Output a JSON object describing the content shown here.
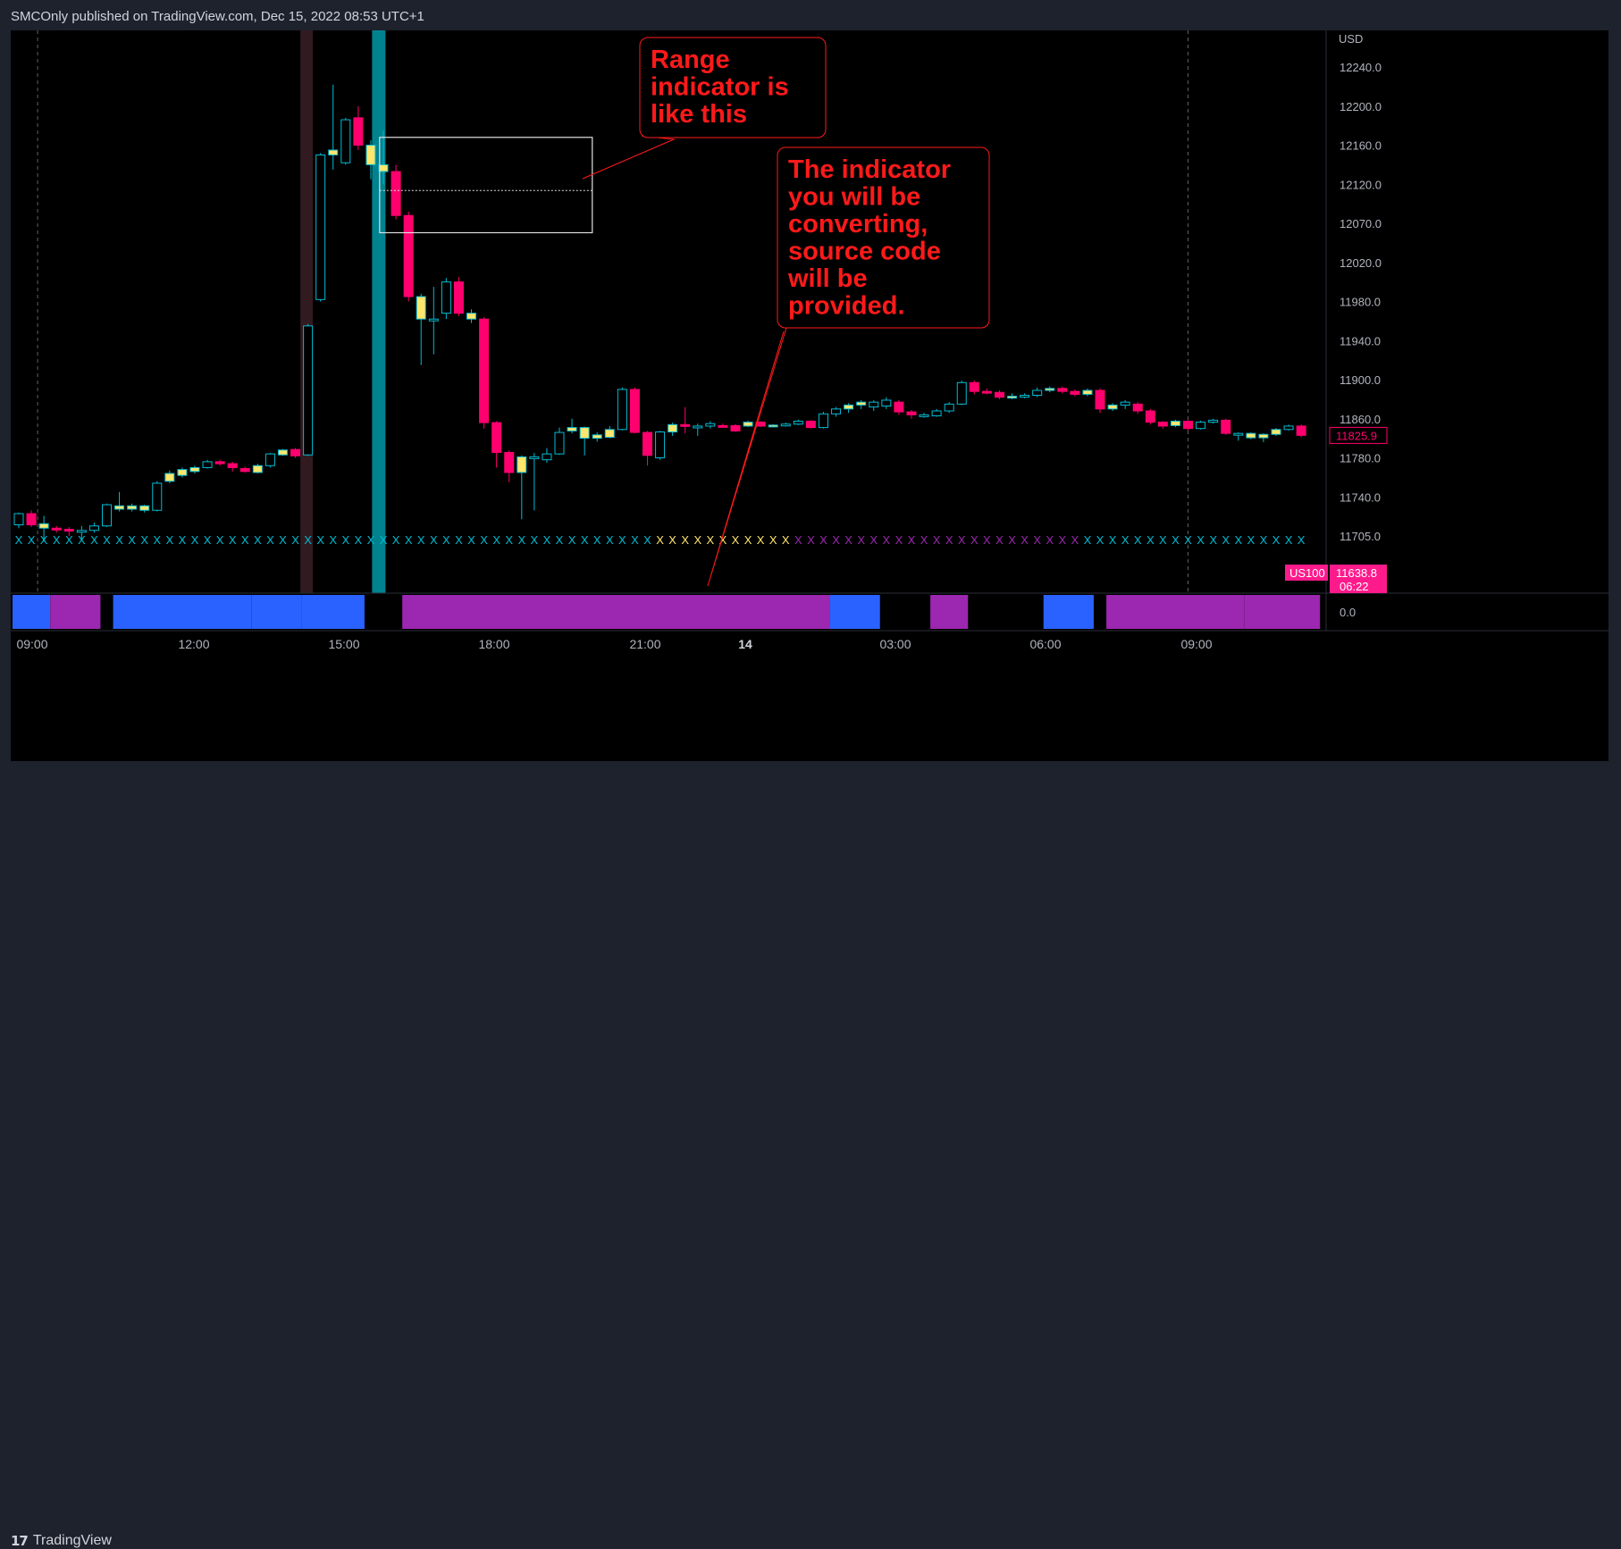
{
  "header": {
    "published_text": "SMCOnly published on TradingView.com, Dec 15, 2022 08:53 UTC+1"
  },
  "footer": {
    "logo_text": "TradingView",
    "logo_icon": "tradingview-logo-icon"
  },
  "colors": {
    "bull": "#00bcd4",
    "bull_alt": "#ffe66d",
    "bear": "#ff006e",
    "annotation": "#ff1a1a",
    "highlight": "#00838f",
    "session": "#311b20",
    "regime_blue": "#2962ff",
    "regime_purple": "#9c27b0",
    "tag_bg": "#ff1a8c"
  },
  "annotations": [
    {
      "lines": [
        "Range",
        "indicator is",
        "like this"
      ]
    },
    {
      "lines": [
        "The indicator",
        "you will be",
        "converting,",
        "source code",
        "will be",
        "provided."
      ]
    }
  ],
  "chart_data": {
    "type": "candlestick",
    "currency_label": "USD",
    "symbol": "US100",
    "last_price": "11825.9",
    "tag_price": "11638.8",
    "countdown": "06:22",
    "indicator_value": "0.0",
    "y_ticks": [
      "12240.0",
      "12200.0",
      "12160.0",
      "12120.0",
      "12070.0",
      "12020.0",
      "11980.0",
      "11940.0",
      "11900.0",
      "11860.0",
      "11780.0",
      "11740.0",
      "11705.0"
    ],
    "x_ticks": [
      {
        "label": "09:00",
        "bold": false
      },
      {
        "label": "12:00",
        "bold": false
      },
      {
        "label": "15:00",
        "bold": false
      },
      {
        "label": "18:00",
        "bold": false
      },
      {
        "label": "21:00",
        "bold": false
      },
      {
        "label": "14",
        "bold": true
      },
      {
        "label": "03:00",
        "bold": false
      },
      {
        "label": "06:00",
        "bold": false
      },
      {
        "label": "09:00",
        "bold": false
      }
    ],
    "candles": [
      [
        11715,
        11725,
        11712,
        11726,
        "b"
      ],
      [
        11725,
        11715,
        11713,
        11728,
        "r"
      ],
      [
        11716,
        11712,
        11700,
        11723,
        "y"
      ],
      [
        11712,
        11711,
        11708,
        11714,
        "r"
      ],
      [
        11711,
        11710,
        11705,
        11713,
        "r"
      ],
      [
        11710,
        11710,
        11702,
        11714,
        "x"
      ],
      [
        11710,
        11714,
        11708,
        11717,
        "b"
      ],
      [
        11714,
        11733,
        11713,
        11734,
        "b"
      ],
      [
        11732,
        11729,
        11727,
        11745,
        "y"
      ],
      [
        11729,
        11732,
        11727,
        11734,
        "y"
      ],
      [
        11732,
        11728,
        11726,
        11733,
        "y"
      ],
      [
        11728,
        11754,
        11727,
        11756,
        "b"
      ],
      [
        11756,
        11764,
        11754,
        11767,
        "y"
      ],
      [
        11762,
        11768,
        11760,
        11770,
        "y"
      ],
      [
        11766,
        11770,
        11764,
        11772,
        "y"
      ],
      [
        11770,
        11776,
        11769,
        11778,
        "b"
      ],
      [
        11776,
        11774,
        11772,
        11778,
        "r"
      ],
      [
        11774,
        11770,
        11766,
        11776,
        "r"
      ],
      [
        11769,
        11766,
        11765,
        11771,
        "r"
      ],
      [
        11765,
        11772,
        11764,
        11774,
        "y"
      ],
      [
        11772,
        11788,
        11770,
        11790,
        "b"
      ],
      [
        11786,
        11796,
        11784,
        11798,
        "y"
      ],
      [
        11797,
        11784,
        11780,
        11800,
        "r"
      ],
      [
        11786,
        11955,
        11784,
        11957,
        "b"
      ],
      [
        11982,
        12150,
        11980,
        12152,
        "b"
      ],
      [
        12150,
        12155,
        12135,
        12222,
        "y"
      ],
      [
        12142,
        12186,
        12140,
        12188,
        "b"
      ],
      [
        12188,
        12160,
        12155,
        12200,
        "r"
      ],
      [
        12160,
        12140,
        12125,
        12165,
        "y"
      ],
      [
        12140,
        12133,
        12120,
        12175,
        "y"
      ],
      [
        12133,
        12080,
        12075,
        12140,
        "r"
      ],
      [
        12080,
        11985,
        11980,
        12085,
        "r"
      ],
      [
        11985,
        11962,
        11915,
        11988,
        "y"
      ],
      [
        11962,
        11962,
        11926,
        11995,
        "x"
      ],
      [
        11968,
        12000,
        11962,
        12004,
        "b"
      ],
      [
        12000,
        11968,
        11965,
        12005,
        "r"
      ],
      [
        11968,
        11962,
        11958,
        11972,
        "y"
      ],
      [
        11962,
        11852,
        11840,
        11964,
        "r"
      ],
      [
        11852,
        11791,
        11770,
        11855,
        "r"
      ],
      [
        11791,
        11765,
        11755,
        11795,
        "r"
      ],
      [
        11765,
        11782,
        11720,
        11785,
        "y"
      ],
      [
        11782,
        11780,
        11728,
        11790,
        "x"
      ],
      [
        11778,
        11788,
        11775,
        11800,
        "b"
      ],
      [
        11788,
        11832,
        11786,
        11842,
        "b"
      ],
      [
        11835,
        11842,
        11830,
        11860,
        "y"
      ],
      [
        11842,
        11820,
        11785,
        11844,
        "y"
      ],
      [
        11820,
        11827,
        11813,
        11832,
        "y"
      ],
      [
        11822,
        11838,
        11820,
        11845,
        "y"
      ],
      [
        11838,
        11890,
        11836,
        11892,
        "b"
      ],
      [
        11890,
        11832,
        11830,
        11892,
        "r"
      ],
      [
        11832,
        11785,
        11772,
        11835,
        "r"
      ],
      [
        11780,
        11833,
        11778,
        11835,
        "b"
      ],
      [
        11833,
        11848,
        11825,
        11852,
        "y"
      ],
      [
        11848,
        11845,
        11830,
        11872,
        "r"
      ],
      [
        11845,
        11845,
        11825,
        11850,
        "x"
      ],
      [
        11845,
        11850,
        11840,
        11855,
        "b"
      ],
      [
        11845,
        11846,
        11842,
        11850,
        "r"
      ],
      [
        11846,
        11835,
        11833,
        11849,
        "r"
      ],
      [
        11845,
        11853,
        11843,
        11856,
        "y"
      ],
      [
        11853,
        11845,
        11843,
        11855,
        "r"
      ],
      [
        11845,
        11847,
        11843,
        11849,
        "y"
      ],
      [
        11846,
        11849,
        11844,
        11852,
        "b"
      ],
      [
        11849,
        11855,
        11847,
        11858,
        "b"
      ],
      [
        11855,
        11842,
        11840,
        11857,
        "r"
      ],
      [
        11842,
        11865,
        11840,
        11867,
        "b"
      ],
      [
        11865,
        11870,
        11862,
        11872,
        "b"
      ],
      [
        11870,
        11874,
        11866,
        11876,
        "y"
      ],
      [
        11874,
        11877,
        11870,
        11879,
        "y"
      ],
      [
        11877,
        11872,
        11868,
        11879,
        "b"
      ],
      [
        11873,
        11879,
        11870,
        11882,
        "b"
      ],
      [
        11877,
        11867,
        11864,
        11879,
        "r"
      ],
      [
        11867,
        11864,
        11860,
        11869,
        "r"
      ],
      [
        11864,
        11863,
        11861,
        11866,
        "b"
      ],
      [
        11863,
        11868,
        11862,
        11870,
        "b"
      ],
      [
        11868,
        11875,
        11866,
        11877,
        "b"
      ],
      [
        11875,
        11897,
        11874,
        11899,
        "b"
      ],
      [
        11897,
        11888,
        11885,
        11899,
        "r"
      ],
      [
        11888,
        11887,
        11885,
        11891,
        "r"
      ],
      [
        11887,
        11882,
        11880,
        11889,
        "r"
      ],
      [
        11882,
        11883,
        11880,
        11886,
        "y"
      ],
      [
        11883,
        11884,
        11881,
        11886,
        "b"
      ],
      [
        11884,
        11889,
        11882,
        11892,
        "b"
      ],
      [
        11889,
        11891,
        11887,
        11893,
        "y"
      ],
      [
        11891,
        11888,
        11886,
        11893,
        "r"
      ],
      [
        11888,
        11885,
        11883,
        11890,
        "r"
      ],
      [
        11885,
        11889,
        11883,
        11891,
        "y"
      ],
      [
        11889,
        11870,
        11866,
        11891,
        "r"
      ],
      [
        11870,
        11874,
        11868,
        11876,
        "y"
      ],
      [
        11874,
        11877,
        11870,
        11879,
        "b"
      ],
      [
        11875,
        11868,
        11865,
        11877,
        "r"
      ],
      [
        11868,
        11853,
        11848,
        11870,
        "r"
      ],
      [
        11853,
        11845,
        11840,
        11855,
        "r"
      ],
      [
        11846,
        11855,
        11843,
        11858,
        "y"
      ],
      [
        11855,
        11840,
        11836,
        11857,
        "r"
      ],
      [
        11840,
        11853,
        11838,
        11856,
        "b"
      ],
      [
        11853,
        11857,
        11850,
        11860,
        "b"
      ],
      [
        11857,
        11830,
        11827,
        11860,
        "r"
      ],
      [
        11830,
        11830,
        11815,
        11832,
        "x"
      ],
      [
        11830,
        11821,
        11818,
        11832,
        "y"
      ],
      [
        11821,
        11828,
        11812,
        11830,
        "y"
      ],
      [
        11828,
        11838,
        11825,
        11841,
        "y"
      ],
      [
        11838,
        11845,
        11836,
        11848,
        "b"
      ],
      [
        11845,
        11826,
        11822,
        11848,
        "r"
      ]
    ],
    "x_markers": "cccccccccccccccccccccccccccccccccccccccccccccccccccyyyyyyyyyyypppppppppppppppppppppppcccccccccccccccccccccccccyyyyyypppppppppppppy",
    "regime_bars": [
      {
        "from": 0,
        "to": 2,
        "state": "blue"
      },
      {
        "from": 3,
        "to": 6,
        "state": "purple"
      },
      {
        "from": 8,
        "to": 18,
        "state": "blue"
      },
      {
        "from": 19,
        "to": 22,
        "state": "blue"
      },
      {
        "from": 23,
        "to": 27,
        "state": "blue"
      },
      {
        "from": 31,
        "to": 64,
        "state": "purple"
      },
      {
        "from": 65,
        "to": 68,
        "state": "blue"
      },
      {
        "from": 73,
        "to": 75,
        "state": "purple"
      },
      {
        "from": 82,
        "to": 85,
        "state": "blue"
      },
      {
        "from": 87,
        "to": 97,
        "state": "purple"
      },
      {
        "from": 98,
        "to": 103,
        "state": "purple"
      }
    ]
  }
}
